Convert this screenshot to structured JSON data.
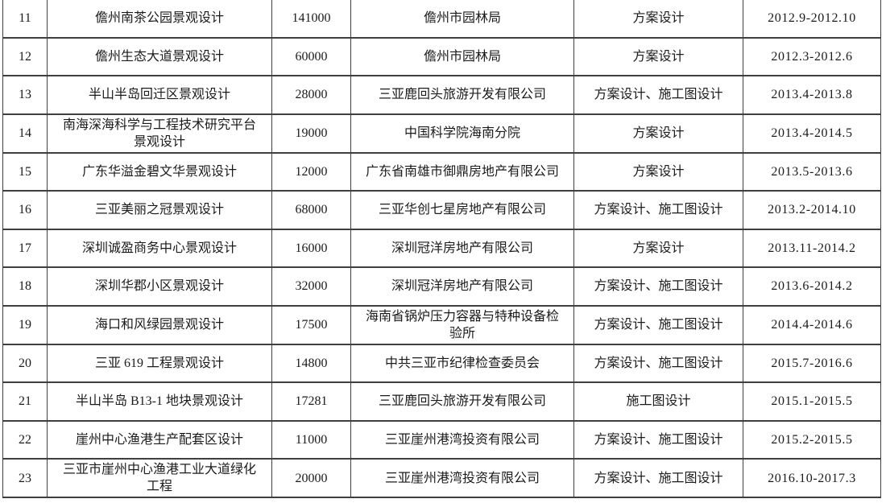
{
  "colors": {
    "border": "#3f3f3f",
    "text": "#1b1b1b",
    "background": "#ffffff"
  },
  "table": {
    "visible_row_range": "11-23",
    "rows": [
      {
        "no": "11",
        "project": "儋州南茶公园景观设计",
        "area": "141000",
        "client": "儋州市园林局",
        "scope": "方案设计",
        "period": "2012.9-2012.10"
      },
      {
        "no": "12",
        "project": "儋州生态大道景观设计",
        "area": "60000",
        "client": "儋州市园林局",
        "scope": "方案设计",
        "period": "2012.3-2012.6"
      },
      {
        "no": "13",
        "project": "半山半岛回迁区景观设计",
        "area": "28000",
        "client": "三亚鹿回头旅游开发有限公司",
        "scope": "方案设计、施工图设计",
        "period": "2013.4-2013.8"
      },
      {
        "no": "14",
        "project": "南海深海科学与工程技术研究平台景观设计",
        "area": "19000",
        "client": "中国科学院海南分院",
        "scope": "方案设计",
        "period": "2013.4-2014.5"
      },
      {
        "no": "15",
        "project": "广东华溢金碧文华景观设计",
        "area": "12000",
        "client": "广东省南雄市御鼎房地产有限公司",
        "scope": "方案设计",
        "period": "2013.5-2013.6"
      },
      {
        "no": "16",
        "project": "三亚美丽之冠景观设计",
        "area": "68000",
        "client": "三亚华创七星房地产有限公司",
        "scope": "方案设计、施工图设计",
        "period": "2013.2-2014.10"
      },
      {
        "no": "17",
        "project": "深圳诚盈商务中心景观设计",
        "area": "16000",
        "client": "深圳冠洋房地产有限公司",
        "scope": "方案设计",
        "period": "2013.11-2014.2"
      },
      {
        "no": "18",
        "project": "深圳华郡小区景观设计",
        "area": "32000",
        "client": "深圳冠洋房地产有限公司",
        "scope": "方案设计、施工图设计",
        "period": "2013.6-2014.2"
      },
      {
        "no": "19",
        "project": "海口和风绿园景观设计",
        "area": "17500",
        "client": "海南省锅炉压力容器与特种设备检验所",
        "scope": "方案设计、施工图设计",
        "period": "2014.4-2014.6"
      },
      {
        "no": "20",
        "project": "三亚 619 工程景观设计",
        "area": "14800",
        "client": "中共三亚市纪律检查委员会",
        "scope": "方案设计、施工图设计",
        "period": "2015.7-2016.6"
      },
      {
        "no": "21",
        "project": "半山半岛 B13-1 地块景观设计",
        "area": "17281",
        "client": "三亚鹿回头旅游开发有限公司",
        "scope": "施工图设计",
        "period": "2015.1-2015.5"
      },
      {
        "no": "22",
        "project": "崖州中心渔港生产配套区设计",
        "area": "11000",
        "client": "三亚崖州港湾投资有限公司",
        "scope": "方案设计、施工图设计",
        "period": "2015.2-2015.5"
      },
      {
        "no": "23",
        "project": "三亚市崖州中心渔港工业大道绿化工程",
        "area": "20000",
        "client": "三亚崖州港湾投资有限公司",
        "scope": "方案设计、施工图设计",
        "period": "2016.10-2017.3"
      }
    ]
  }
}
